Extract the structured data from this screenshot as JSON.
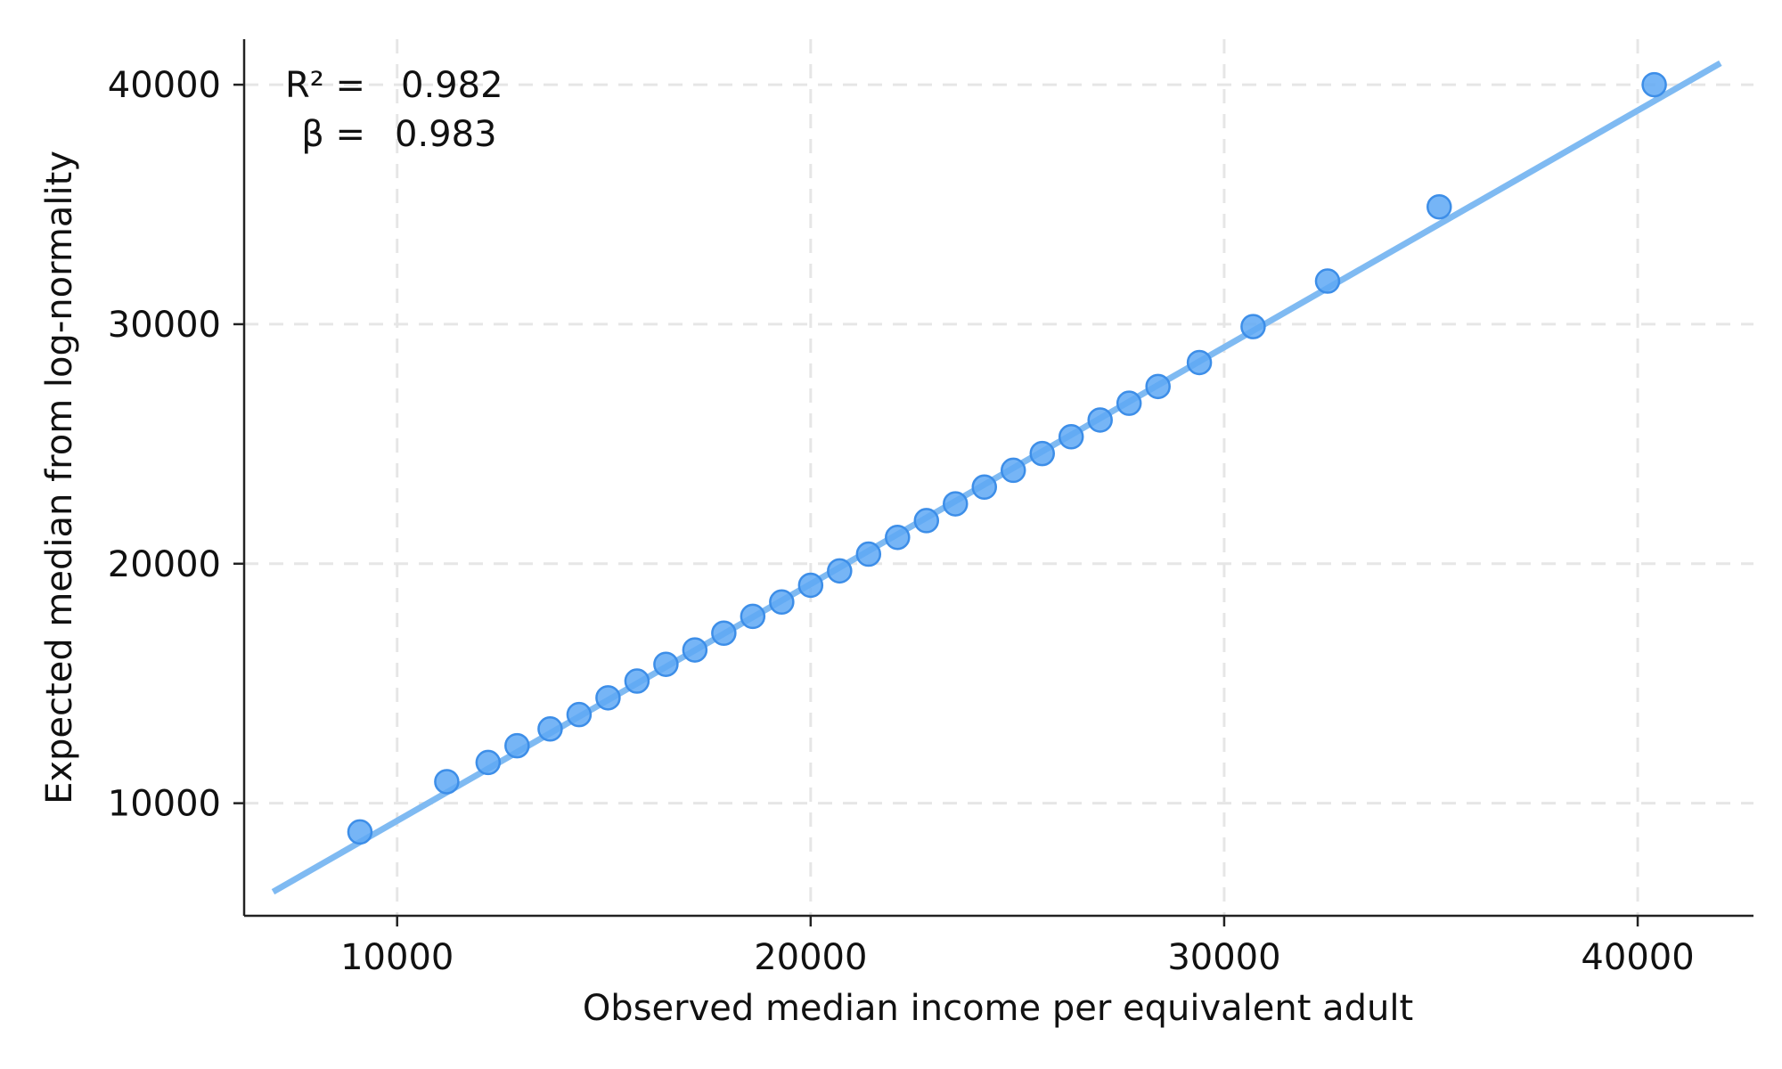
{
  "chart_data": {
    "type": "scatter",
    "title": "",
    "xlabel": "Observed median income per equivalent adult",
    "ylabel": "Expected median from log-normality",
    "xlim": [
      6300,
      42800
    ],
    "ylim": [
      5300,
      41900
    ],
    "x_ticks": [
      10000,
      20000,
      30000,
      40000
    ],
    "y_ticks": [
      10000,
      20000,
      30000,
      40000
    ],
    "x_tick_labels": [
      "10000",
      "20000",
      "30000",
      "40000"
    ],
    "y_tick_labels": [
      "10000",
      "20000",
      "30000",
      "40000"
    ],
    "grid": true,
    "legend": "none",
    "annotations": {
      "r2_label": "R² =",
      "r2_value": "0.982",
      "beta_label": "β =",
      "beta_value": "0.983"
    },
    "colors": {
      "points": "#5ea8f5",
      "points_edge": "#3d8ee8",
      "fit_line": "#7fbaf2"
    },
    "fit_line": {
      "x": [
        7000,
        42000
      ],
      "y": [
        6300,
        40900
      ]
    },
    "points": [
      {
        "x": 9100,
        "y": 8800
      },
      {
        "x": 11200,
        "y": 10900
      },
      {
        "x": 12200,
        "y": 11700
      },
      {
        "x": 12900,
        "y": 12400
      },
      {
        "x": 13700,
        "y": 13100
      },
      {
        "x": 14400,
        "y": 13700
      },
      {
        "x": 15100,
        "y": 14400
      },
      {
        "x": 15800,
        "y": 15100
      },
      {
        "x": 16500,
        "y": 15800
      },
      {
        "x": 17200,
        "y": 16400
      },
      {
        "x": 17900,
        "y": 17100
      },
      {
        "x": 18600,
        "y": 17800
      },
      {
        "x": 19300,
        "y": 18400
      },
      {
        "x": 20000,
        "y": 19100
      },
      {
        "x": 20700,
        "y": 19700
      },
      {
        "x": 21400,
        "y": 20400
      },
      {
        "x": 22100,
        "y": 21100
      },
      {
        "x": 22800,
        "y": 21800
      },
      {
        "x": 23500,
        "y": 22500
      },
      {
        "x": 24200,
        "y": 23200
      },
      {
        "x": 24900,
        "y": 23900
      },
      {
        "x": 25600,
        "y": 24600
      },
      {
        "x": 26300,
        "y": 25300
      },
      {
        "x": 27000,
        "y": 26000
      },
      {
        "x": 27700,
        "y": 26700
      },
      {
        "x": 28400,
        "y": 27400
      },
      {
        "x": 29400,
        "y": 28400
      },
      {
        "x": 30700,
        "y": 29900
      },
      {
        "x": 32500,
        "y": 31800
      },
      {
        "x": 35200,
        "y": 34900
      },
      {
        "x": 40400,
        "y": 40000
      }
    ]
  }
}
